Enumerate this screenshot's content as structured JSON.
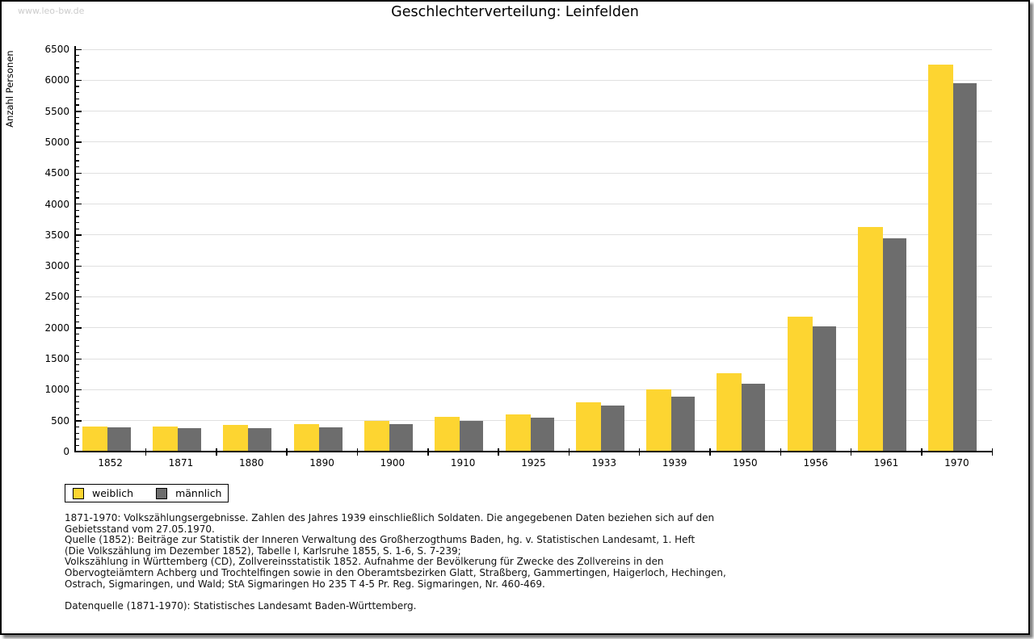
{
  "watermark": "www.leo-bw.de",
  "chart_data": {
    "type": "bar",
    "title": "Geschlechterverteilung: Leinfelden",
    "xlabel": "",
    "ylabel": "Anzahl Personen",
    "ylim": [
      0,
      6500
    ],
    "ytick_step": 500,
    "minor_tick_step": 100,
    "grid": true,
    "legend_position": "bottom-left",
    "categories": [
      "1852",
      "1871",
      "1880",
      "1890",
      "1900",
      "1910",
      "1925",
      "1933",
      "1939",
      "1950",
      "1956",
      "1961",
      "1970"
    ],
    "series": [
      {
        "name": "weiblich",
        "color": "#FDD531",
        "values": [
          410,
          400,
          430,
          450,
          500,
          565,
          600,
          800,
          1010,
          1270,
          2180,
          3630,
          6250
        ]
      },
      {
        "name": "männlich",
        "color": "#6D6D6D",
        "values": [
          390,
          375,
          380,
          390,
          440,
          495,
          545,
          750,
          890,
          1100,
          2020,
          3450,
          5950
        ]
      }
    ]
  },
  "footer": {
    "lines": [
      "1871-1970: Volkszählungsergebnisse. Zahlen des Jahres 1939 einschließlich Soldaten. Die angegebenen Daten beziehen sich auf den",
      "Gebietsstand vom 27.05.1970.",
      "Quelle (1852): Beiträge zur Statistik der Inneren Verwaltung des Großherzogthums Baden, hg. v. Statistischen Landesamt, 1. Heft",
      "(Die Volkszählung im Dezember 1852), Tabelle I, Karlsruhe 1855, S. 1-6, S. 7-239;",
      "Volkszählung in Württemberg (CD), Zollvereinsstatistik 1852. Aufnahme der Bevölkerung für Zwecke des Zollvereins in den",
      "Obervogteiämtern Achberg und Trochtelfingen sowie in den Oberamtsbezirken Glatt, Straßberg, Gammertingen, Haigerloch, Hechingen,",
      "Ostrach, Sigmaringen, und Wald; StA Sigmaringen Ho 235 T 4-5 Pr. Reg. Sigmaringen, Nr. 460-469."
    ],
    "datasource": "Datenquelle (1871-1970): Statistisches Landesamt Baden-Württemberg."
  }
}
